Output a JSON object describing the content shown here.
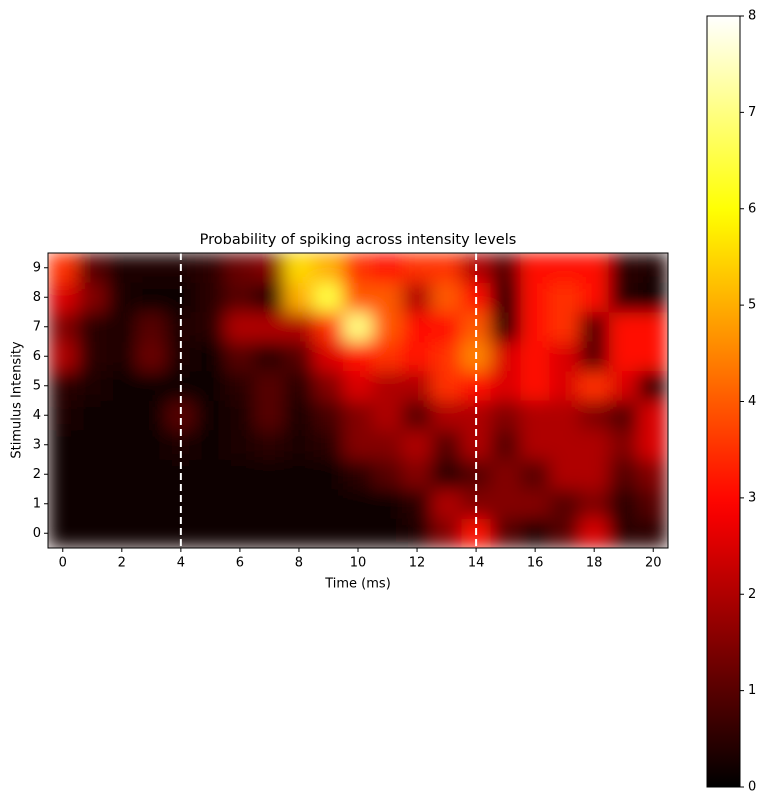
{
  "chart_data": {
    "type": "heatmap",
    "title": "Probability of spiking across intensity levels",
    "xlabel": "Time (ms)",
    "ylabel": "Stimulus Intensity",
    "x": [
      0,
      1,
      2,
      3,
      4,
      5,
      6,
      7,
      8,
      9,
      10,
      11,
      12,
      13,
      14,
      15,
      16,
      17,
      18,
      19,
      20
    ],
    "y": [
      0,
      1,
      2,
      3,
      4,
      5,
      6,
      7,
      8,
      9
    ],
    "z": [
      [
        0.2,
        0.2,
        0.2,
        0.2,
        0.2,
        0.2,
        0.2,
        0.2,
        0.2,
        0.2,
        0.2,
        0.2,
        0.3,
        1.5,
        3,
        1,
        0.3,
        1,
        2.5,
        0.5,
        0.5
      ],
      [
        0.2,
        0.2,
        0.2,
        0.2,
        0.2,
        0.2,
        0.2,
        0.2,
        0.2,
        0.2,
        0.2,
        0.2,
        0.5,
        2,
        1.5,
        1.5,
        1.5,
        1,
        1.5,
        0.5,
        1
      ],
      [
        0.2,
        0.2,
        0.2,
        0.2,
        0.2,
        0.2,
        0.2,
        0.2,
        0.2,
        0.2,
        0.5,
        1,
        1.5,
        0.5,
        1,
        1.5,
        1,
        2,
        2,
        1,
        1.5
      ],
      [
        0.2,
        0.2,
        0.2,
        0.2,
        0.3,
        0.2,
        0.3,
        0.5,
        0.3,
        0.5,
        1.5,
        1.5,
        2,
        1,
        2,
        1,
        2,
        2,
        2,
        1.5,
        2.5
      ],
      [
        0.3,
        0.2,
        0.2,
        0.2,
        1,
        0.2,
        0.3,
        1,
        0.3,
        0.8,
        1.5,
        2,
        1,
        2,
        2,
        1.5,
        2,
        2,
        1.5,
        1,
        2.5
      ],
      [
        0.5,
        0.3,
        0.2,
        0.2,
        0.2,
        0.2,
        0.5,
        1,
        0.5,
        1.5,
        2.5,
        2,
        2,
        3.5,
        3,
        2.5,
        3,
        2.5,
        3.5,
        2.5,
        0.5
      ],
      [
        2,
        0.5,
        0.3,
        1.2,
        0.3,
        0.2,
        1,
        0.5,
        1,
        2.5,
        3,
        3.5,
        3,
        3.5,
        4.5,
        2.5,
        3,
        2.5,
        1,
        3,
        3
      ],
      [
        1.5,
        0.5,
        0.3,
        1,
        0.3,
        0.5,
        2,
        2,
        2,
        3.5,
        7,
        4,
        3,
        3,
        4,
        0.5,
        3,
        3.5,
        1,
        3,
        3
      ],
      [
        2.5,
        1.5,
        0.3,
        0.2,
        0.2,
        0.5,
        1,
        0.5,
        5,
        6.5,
        4,
        4,
        2,
        4,
        3,
        0.5,
        3,
        3.5,
        3,
        0.5,
        0.2
      ],
      [
        3.5,
        1,
        0.3,
        0.3,
        0.3,
        0.5,
        1.2,
        1.5,
        5.5,
        5,
        3.5,
        3,
        3.5,
        3.5,
        2,
        1,
        3,
        3,
        3,
        0.5,
        0.3
      ]
    ],
    "xlim": [
      -0.5,
      20.5
    ],
    "ylim": [
      -0.5,
      9.5
    ],
    "xticks": [
      0,
      2,
      4,
      6,
      8,
      10,
      12,
      14,
      16,
      18,
      20
    ],
    "yticks": [
      0,
      1,
      2,
      3,
      4,
      5,
      6,
      7,
      8,
      9
    ],
    "vlines": [
      4,
      14
    ],
    "vline_color": "#ffffff",
    "colormap": "hot",
    "colorbar": {
      "lim": [
        0,
        8
      ],
      "ticks": [
        0,
        1,
        2,
        3,
        4,
        5,
        6,
        7,
        8
      ]
    }
  }
}
